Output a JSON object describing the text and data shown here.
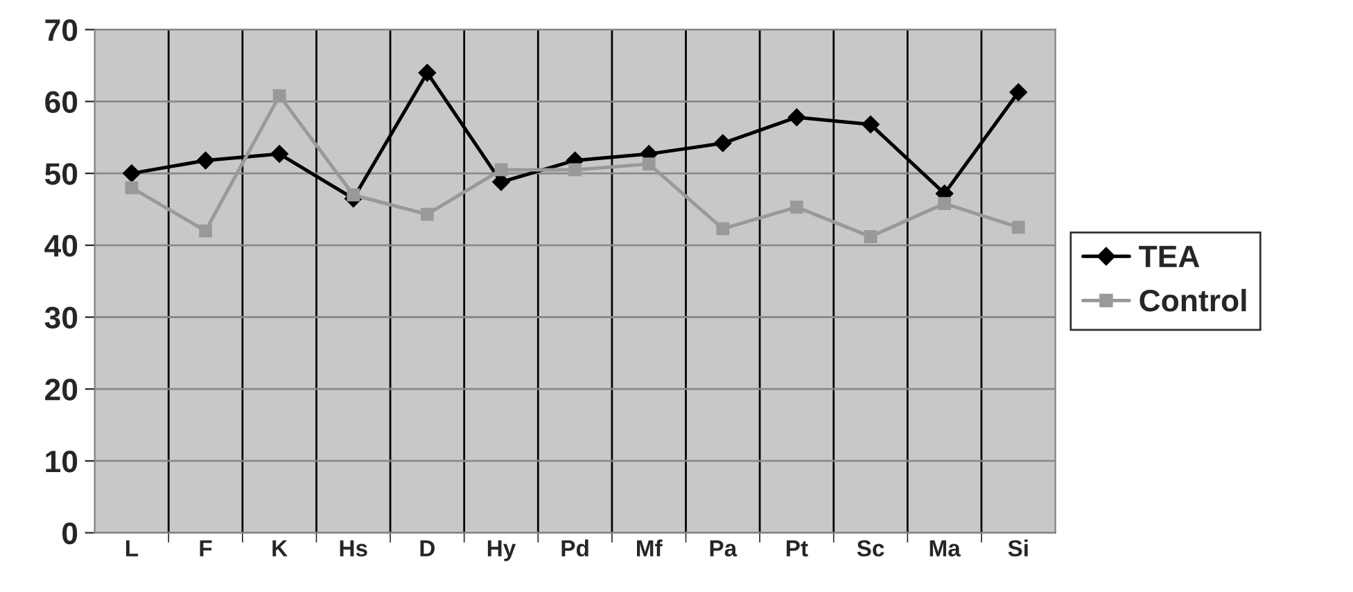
{
  "chart_data": {
    "type": "line",
    "categories": [
      "L",
      "F",
      "K",
      "Hs",
      "D",
      "Hy",
      "Pd",
      "Mf",
      "Pa",
      "Pt",
      "Sc",
      "Ma",
      "Si"
    ],
    "series": [
      {
        "name": "TEA",
        "color": "#000000",
        "marker": "diamond",
        "values": [
          50,
          51.8,
          52.7,
          46.5,
          64,
          48.8,
          51.8,
          52.7,
          54.2,
          57.8,
          56.8,
          47.2,
          61.3
        ]
      },
      {
        "name": "Control",
        "color": "#999999",
        "marker": "square",
        "values": [
          48,
          42,
          60.8,
          47,
          44.3,
          50.5,
          50.5,
          51.3,
          42.3,
          45.3,
          41.2,
          45.8,
          42.5
        ]
      }
    ],
    "ylim": [
      0,
      70
    ],
    "yticks": [
      0,
      10,
      20,
      30,
      40,
      50,
      60,
      70
    ],
    "grid": true,
    "legend": "right",
    "line_style": "solid"
  }
}
